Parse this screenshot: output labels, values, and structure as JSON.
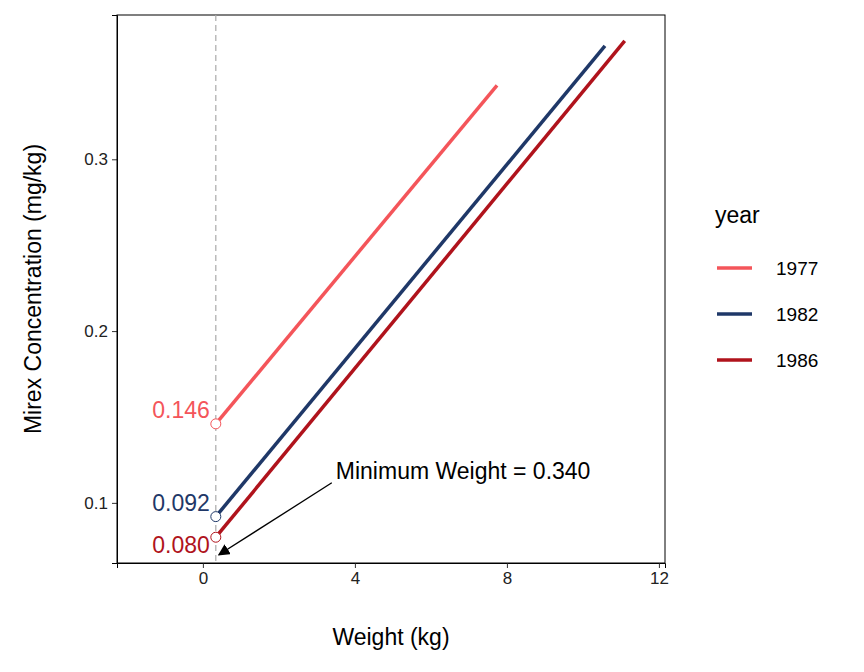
{
  "chart_data": {
    "type": "line",
    "x_label": "Weight (kg)",
    "y_label": "Mirex Concentration (mg/kg)",
    "legend_title": "year",
    "legend": "right",
    "grid": false,
    "data_labels": true,
    "marker": "circle",
    "xlim": [
      -2.26,
      12.16
    ],
    "xticks": [
      0,
      4,
      8,
      12
    ],
    "ylim": [
      0.065,
      0.384
    ],
    "yticks": [
      0.1,
      0.2,
      0.3
    ],
    "series": [
      {
        "name": "1977",
        "color": "#f4555a",
        "x": [
          0.34,
          7.74
        ],
        "values": [
          0.146,
          0.343
        ],
        "value_labels": [
          "0.146",
          null
        ]
      },
      {
        "name": "1982",
        "color": "#1f3868",
        "x": [
          0.34,
          10.58
        ],
        "values": [
          0.092,
          0.366
        ],
        "value_labels": [
          "0.092",
          null
        ]
      },
      {
        "name": "1986",
        "color": "#b0131c",
        "x": [
          0.34,
          11.1
        ],
        "values": [
          0.08,
          0.369
        ],
        "value_labels": [
          "0.080",
          null
        ]
      }
    ],
    "annotations": [
      {
        "text": "Minimum Weight = 0.340",
        "x": 0.34,
        "y": 0.0686
      }
    ]
  }
}
